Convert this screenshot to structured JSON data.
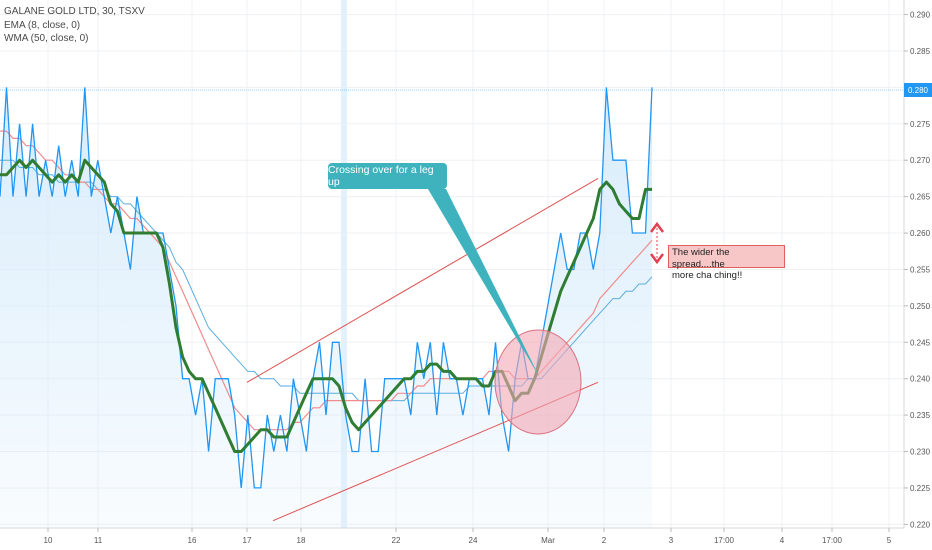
{
  "legend": {
    "symbol": "GALANE GOLD LTD, 30, TSXV",
    "ema": "EMA (8, close, 0)",
    "wma": "WMA (50, close, 0)"
  },
  "annotations": {
    "callout": "Crossing over for a leg up",
    "note_line1": "The wider the spread....the",
    "note_line2": "more cha ching!!",
    "price_tag": "0.280"
  },
  "colors": {
    "price_line": "#2196f3",
    "area_fill": "#d6ebfb",
    "ema_line": "#2e7d32",
    "wma_line": "#f08c8c",
    "blue_avg_line": "#5aaee0",
    "trend_lines": "#e05050",
    "callout_bg": "#3fb3bd",
    "ellipse_fill": "#f4a6b4"
  },
  "chart_data": {
    "type": "line",
    "title": "GALANE GOLD LTD, 30, TSXV",
    "x_ticks": [
      "10",
      "11",
      "16",
      "17",
      "18",
      "22",
      "24",
      "Mar",
      "2",
      "3",
      "17:00",
      "4",
      "17:00",
      "5"
    ],
    "y_ticks": [
      "0.290",
      "0.285",
      "0.280",
      "0.275",
      "0.270",
      "0.265",
      "0.260",
      "0.255",
      "0.250",
      "0.245",
      "0.240",
      "0.235",
      "0.230",
      "0.225",
      "0.220"
    ],
    "ylim": [
      0.2195,
      0.292
    ],
    "series": [
      {
        "name": "GALANE GOLD LTD, 30, TSXV",
        "values": [
          0.265,
          0.28,
          0.265,
          0.275,
          0.265,
          0.275,
          0.265,
          0.27,
          0.265,
          0.272,
          0.265,
          0.27,
          0.265,
          0.28,
          0.265,
          0.27,
          0.265,
          0.26,
          0.265,
          0.26,
          0.255,
          0.265,
          0.26,
          0.26,
          0.26,
          0.26,
          0.255,
          0.25,
          0.24,
          0.24,
          0.235,
          0.24,
          0.23,
          0.24,
          0.24,
          0.24,
          0.235,
          0.225,
          0.235,
          0.225,
          0.225,
          0.235,
          0.23,
          0.235,
          0.23,
          0.24,
          0.235,
          0.23,
          0.24,
          0.245,
          0.235,
          0.245,
          0.245,
          0.235,
          0.23,
          0.23,
          0.24,
          0.23,
          0.23,
          0.24,
          0.24,
          0.24,
          0.24,
          0.235,
          0.245,
          0.24,
          0.245,
          0.235,
          0.245,
          0.24,
          0.24,
          0.235,
          0.24,
          0.24,
          0.24,
          0.235,
          0.245,
          0.235,
          0.23,
          0.24,
          0.245,
          0.24,
          0.24,
          0.245,
          0.25,
          0.255,
          0.26,
          0.255,
          0.255,
          0.26,
          0.26,
          0.255,
          0.26,
          0.28,
          0.27,
          0.27,
          0.27,
          0.26,
          0.26,
          0.26,
          0.28
        ]
      },
      {
        "name": "EMA (8, close, 0)",
        "values": [
          0.268,
          0.268,
          0.269,
          0.27,
          0.269,
          0.27,
          0.269,
          0.268,
          0.267,
          0.268,
          0.267,
          0.268,
          0.267,
          0.27,
          0.269,
          0.268,
          0.267,
          0.264,
          0.263,
          0.26,
          0.26,
          0.26,
          0.26,
          0.26,
          0.26,
          0.258,
          0.253,
          0.247,
          0.243,
          0.241,
          0.24,
          0.24,
          0.238,
          0.236,
          0.234,
          0.232,
          0.23,
          0.23,
          0.231,
          0.232,
          0.233,
          0.233,
          0.232,
          0.232,
          0.232,
          0.234,
          0.236,
          0.238,
          0.24,
          0.24,
          0.24,
          0.24,
          0.239,
          0.236,
          0.234,
          0.233,
          0.234,
          0.235,
          0.236,
          0.237,
          0.238,
          0.239,
          0.24,
          0.24,
          0.241,
          0.241,
          0.242,
          0.242,
          0.241,
          0.241,
          0.24,
          0.24,
          0.24,
          0.24,
          0.239,
          0.239,
          0.241,
          0.241,
          0.239,
          0.237,
          0.238,
          0.238,
          0.24,
          0.243,
          0.246,
          0.249,
          0.252,
          0.254,
          0.256,
          0.258,
          0.26,
          0.262,
          0.266,
          0.267,
          0.266,
          0.264,
          0.263,
          0.262,
          0.262,
          0.266,
          0.266
        ]
      },
      {
        "name": "WMA (50, close, 0)",
        "values": [
          0.274,
          0.274,
          0.273,
          0.273,
          0.272,
          0.272,
          0.271,
          0.27,
          0.27,
          0.269,
          0.268,
          0.268,
          0.267,
          0.267,
          0.266,
          0.266,
          0.265,
          0.264,
          0.264,
          0.263,
          0.262,
          0.262,
          0.261,
          0.26,
          0.259,
          0.258,
          0.256,
          0.254,
          0.252,
          0.25,
          0.248,
          0.246,
          0.244,
          0.242,
          0.24,
          0.238,
          0.236,
          0.235,
          0.234,
          0.233,
          0.233,
          0.233,
          0.233,
          0.233,
          0.233,
          0.234,
          0.234,
          0.235,
          0.236,
          0.236,
          0.237,
          0.237,
          0.237,
          0.237,
          0.237,
          0.237,
          0.237,
          0.237,
          0.237,
          0.237,
          0.237,
          0.238,
          0.238,
          0.238,
          0.239,
          0.239,
          0.24,
          0.24,
          0.24,
          0.24,
          0.24,
          0.24,
          0.24,
          0.24,
          0.24,
          0.241,
          0.241,
          0.241,
          0.241,
          0.24,
          0.24,
          0.24,
          0.24,
          0.241,
          0.242,
          0.243,
          0.244,
          0.245,
          0.246,
          0.247,
          0.248,
          0.249,
          0.251,
          0.252,
          0.253,
          0.254,
          0.255,
          0.256,
          0.257,
          0.258,
          0.259
        ]
      },
      {
        "values": [
          0.27,
          0.27,
          0.27,
          0.269,
          0.269,
          0.269,
          0.268,
          0.268,
          0.268,
          0.267,
          0.267,
          0.267,
          0.267,
          0.267,
          0.267,
          0.266,
          0.266,
          0.265,
          0.265,
          0.264,
          0.264,
          0.263,
          0.262,
          0.261,
          0.26,
          0.259,
          0.258,
          0.256,
          0.255,
          0.253,
          0.251,
          0.249,
          0.247,
          0.246,
          0.245,
          0.244,
          0.243,
          0.242,
          0.241,
          0.241,
          0.24,
          0.24,
          0.24,
          0.239,
          0.239,
          0.239,
          0.238,
          0.238,
          0.238,
          0.238,
          0.238,
          0.238,
          0.238,
          0.238,
          0.238,
          0.237,
          0.237,
          0.237,
          0.237,
          0.237,
          0.237,
          0.237,
          0.237,
          0.238,
          0.238,
          0.238,
          0.238,
          0.238,
          0.238,
          0.238,
          0.238,
          0.238,
          0.239,
          0.239,
          0.239,
          0.239,
          0.239,
          0.239,
          0.239,
          0.239,
          0.239,
          0.24,
          0.24,
          0.24,
          0.241,
          0.242,
          0.243,
          0.244,
          0.245,
          0.246,
          0.247,
          0.248,
          0.249,
          0.25,
          0.251,
          0.251,
          0.252,
          0.252,
          0.253,
          0.253,
          0.254
        ]
      }
    ],
    "current_price": 0.28,
    "trend_lines": [
      {
        "from": [
          0.2205,
          0.2205
        ],
        "to": [
          0.2395,
          0.2395
        ]
      },
      {
        "from": [
          0.2395,
          0.2395
        ],
        "to": [
          0.2675,
          0.2675
        ]
      }
    ],
    "grid": true,
    "legend_position": "top-left"
  }
}
